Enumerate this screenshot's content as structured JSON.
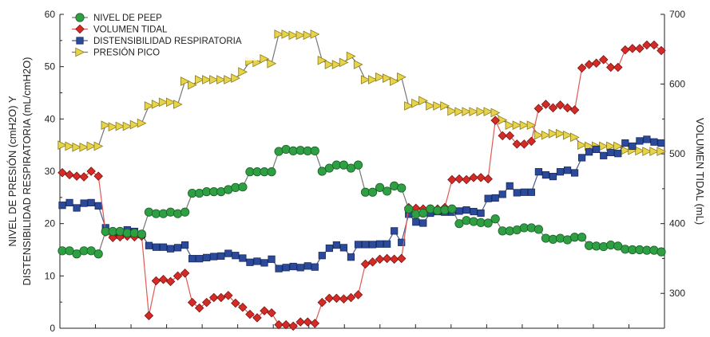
{
  "chart_data": {
    "type": "line",
    "title": "",
    "ylabel_left_line1": "NIVEL DE PRESIÓN (cmH2O) Y",
    "ylabel_left_line2": "DISTENSIBILIDAD RESPIRATORIA (mL/cmH2O)",
    "ylabel_right": "VOLUMEN TIDAL (mL)",
    "ylim_left": [
      0,
      60
    ],
    "ylim_right": [
      250,
      700
    ],
    "yticks_left": [
      "0",
      "10",
      "20",
      "30",
      "40",
      "50",
      "60"
    ],
    "yticks_right": [
      "300",
      "400",
      "500",
      "600",
      "700"
    ],
    "x_count": 84,
    "legend_position": "top-left",
    "series": [
      {
        "name": "NIVEL DE PEEP",
        "axis": "left",
        "color": "#2ea043",
        "marker": "circle",
        "values": [
          14.8,
          14.8,
          14.2,
          14.8,
          14.8,
          14.2,
          18.5,
          18.5,
          18.5,
          18.2,
          18.2,
          18.0,
          22.2,
          21.9,
          21.9,
          22.2,
          21.9,
          22.2,
          25.8,
          25.8,
          26.1,
          26.1,
          26.1,
          26.5,
          26.9,
          27.0,
          29.9,
          29.9,
          29.9,
          29.9,
          33.8,
          34.2,
          33.9,
          34.0,
          33.9,
          33.9,
          30.0,
          30.6,
          31.2,
          31.2,
          30.6,
          31.2,
          26.0,
          26.0,
          26.9,
          26.2,
          27.2,
          26.8,
          22.8,
          21.8,
          22.0,
          22.8,
          22.5,
          22.6,
          22.8,
          20.0,
          20.6,
          20.4,
          20.2,
          20.1,
          20.9,
          18.6,
          18.6,
          18.8,
          19.2,
          19.2,
          18.9,
          17.2,
          17.0,
          17.2,
          16.9,
          17.4,
          17.4,
          15.8,
          15.7,
          15.6,
          15.9,
          15.7,
          15.1,
          15.0,
          15.0,
          14.9,
          14.9,
          14.6
        ]
      },
      {
        "name": "VOLUMEN TIDAL",
        "axis": "right",
        "color": "#d42b27",
        "marker": "diamond",
        "values": [
          473,
          470,
          468,
          467,
          475,
          468,
          388,
          380,
          381,
          382,
          381,
          382,
          268,
          318,
          320,
          317,
          325,
          329,
          287,
          279,
          287,
          294,
          294,
          297,
          286,
          280,
          270,
          265,
          275,
          272,
          255,
          255,
          253,
          259,
          259,
          257,
          287,
          293,
          293,
          292,
          294,
          298,
          342,
          345,
          349,
          350,
          349,
          350,
          423,
          422,
          421,
          421,
          421,
          423,
          463,
          464,
          463,
          466,
          466,
          464,
          548,
          526,
          526,
          514,
          514,
          518,
          565,
          571,
          566,
          570,
          566,
          563,
          623,
          628,
          630,
          635,
          624,
          624,
          649,
          651,
          651,
          656,
          656,
          648
        ]
      },
      {
        "name": "DISTENSIBILIDAD RESPIRATORIA",
        "axis": "left",
        "color": "#2b4a9c",
        "marker": "square",
        "values": [
          23.5,
          24.0,
          23.0,
          23.9,
          24.0,
          23.4,
          19.2,
          18.2,
          17.8,
          18.8,
          18.5,
          17.9,
          15.8,
          15.5,
          15.5,
          15.2,
          15.4,
          15.9,
          13.3,
          13.3,
          13.5,
          13.7,
          13.8,
          14.3,
          13.9,
          13.4,
          12.6,
          12.8,
          12.5,
          13.2,
          11.4,
          11.6,
          11.8,
          11.6,
          11.9,
          11.7,
          13.9,
          15.3,
          15.9,
          15.4,
          13.6,
          16.0,
          16.0,
          16.0,
          16.1,
          16.1,
          18.6,
          16.4,
          21.8,
          20.3,
          20.1,
          22.0,
          22.3,
          22.2,
          22.2,
          22.4,
          22.6,
          22.3,
          22.0,
          24.8,
          24.9,
          25.6,
          27.2,
          25.9,
          26.0,
          26.0,
          29.9,
          29.3,
          29.0,
          29.9,
          30.2,
          29.7,
          32.6,
          33.7,
          34.2,
          33.0,
          33.6,
          33.4,
          35.4,
          34.8,
          35.8,
          36.1,
          35.6,
          35.4
        ]
      },
      {
        "name": "PRESIÓN PICO",
        "axis": "left",
        "color": "#e8d44a",
        "marker": "triangle-right",
        "values": [
          35.0,
          34.8,
          34.6,
          34.6,
          34.8,
          34.8,
          38.8,
          38.5,
          38.6,
          38.6,
          38.9,
          39.2,
          42.5,
          42.8,
          43.2,
          43.2,
          42.8,
          47.2,
          46.5,
          47.5,
          47.5,
          47.5,
          47.5,
          47.5,
          47.8,
          49.0,
          51.0,
          50.8,
          51.5,
          50.6,
          56.2,
          56.2,
          56.0,
          56.0,
          56.0,
          56.2,
          51.2,
          50.4,
          50.4,
          50.8,
          52.0,
          50.4,
          47.5,
          47.5,
          48.0,
          47.8,
          47.2,
          48.0,
          42.5,
          43.0,
          43.5,
          42.5,
          42.5,
          42.5,
          41.5,
          41.4,
          41.4,
          41.4,
          41.4,
          41.4,
          41.2,
          39.8,
          38.8,
          38.8,
          38.8,
          38.8,
          36.9,
          36.9,
          37.2,
          37.2,
          36.9,
          36.5,
          35.0,
          34.8,
          34.8,
          34.8,
          34.8,
          34.8,
          34.0,
          34.0,
          33.9,
          33.8,
          33.8,
          33.8
        ]
      }
    ]
  }
}
